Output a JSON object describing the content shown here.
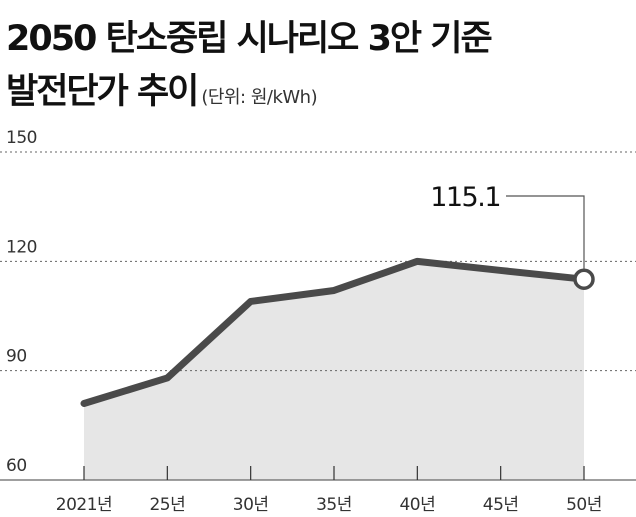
{
  "title": {
    "line1": "2050 탄소중립 시나리오 3안 기준",
    "line2": "발전단가 추이",
    "unit": "(단위: 원/kWh)"
  },
  "colors": {
    "line": "#4a4a4a",
    "area": "#e6e6e6",
    "grid": "#666666",
    "text": "#111111"
  },
  "chart_data": {
    "type": "area",
    "title": "2050 탄소중립 시나리오 3안 기준 발전단가 추이",
    "unit": "원/kWh",
    "categories": [
      "2021년",
      "25년",
      "30년",
      "35년",
      "40년",
      "45년",
      "50년"
    ],
    "series": [
      {
        "values": [
          81,
          88,
          109,
          112,
          120,
          117.5,
          115.1
        ]
      }
    ],
    "ylim": [
      60,
      150
    ],
    "yticks": [
      150,
      120,
      90,
      60
    ],
    "grid": "dotted horizontal",
    "annotation": {
      "category": "50년",
      "label": "115.1"
    }
  }
}
